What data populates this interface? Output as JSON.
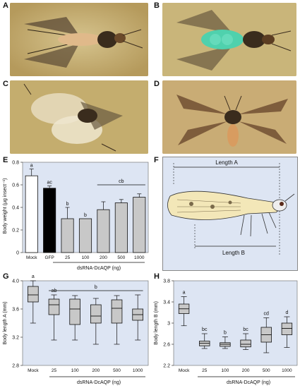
{
  "panel_labels": [
    "A",
    "B",
    "C",
    "D",
    "E",
    "F",
    "G",
    "H"
  ],
  "photo_colors": {
    "A": "#c8b176",
    "B": "#c9b57a",
    "C": "#c4ad6e",
    "D": "#c9ac75",
    "plot_bg": "#dde5f3",
    "bar_fill": "#c8c8c8",
    "bar_black": "#000000",
    "mint": "#4fd1ad"
  },
  "diagram": {
    "length_a": "Length A",
    "length_b": "Length B"
  },
  "chart_data": [
    {
      "panel": "E",
      "type": "bar",
      "ylabel": "Body weight (μg insect⁻¹)",
      "ylim": [
        0,
        0.8
      ],
      "yticks": [
        "0",
        "0.2",
        "0.4",
        "0.6",
        "0.8"
      ],
      "categories": [
        "Mock",
        "GFP",
        "25",
        "100",
        "200",
        "500",
        "1000"
      ],
      "values": [
        0.68,
        0.57,
        0.3,
        0.3,
        0.38,
        0.44,
        0.49
      ],
      "errors": [
        0.06,
        0.02,
        0.1,
        0.0,
        0.07,
        0.03,
        0.03
      ],
      "fills": [
        "white",
        "black",
        "grey",
        "grey",
        "grey",
        "grey",
        "grey"
      ],
      "letters": [
        "a",
        "ac",
        "b",
        "b",
        "",
        "",
        ""
      ],
      "group_letter": "cb",
      "xlabel": "dsRNA-DcAQP (ng)"
    },
    {
      "panel": "G",
      "type": "box",
      "ylabel": "Body length A (mm)",
      "ylim": [
        2.8,
        4.0
      ],
      "yticks": [
        "2.8",
        "3.2",
        "3.6",
        "4.0"
      ],
      "categories": [
        "Mock",
        "25",
        "100",
        "200",
        "500",
        "1000"
      ],
      "boxes": [
        {
          "min": 3.4,
          "q1": 3.7,
          "median": 3.8,
          "q3": 3.92,
          "max": 4.0
        },
        {
          "min": 3.16,
          "q1": 3.52,
          "median": 3.66,
          "q3": 3.74,
          "max": 3.8
        },
        {
          "min": 3.16,
          "q1": 3.38,
          "median": 3.6,
          "q3": 3.74,
          "max": 3.79
        },
        {
          "min": 3.1,
          "q1": 3.4,
          "median": 3.5,
          "q3": 3.66,
          "max": 3.75
        },
        {
          "min": 3.1,
          "q1": 3.4,
          "median": 3.61,
          "q3": 3.73,
          "max": 3.79
        },
        {
          "min": 3.16,
          "q1": 3.44,
          "median": 3.52,
          "q3": 3.6,
          "max": 3.8
        }
      ],
      "letters": [
        "a",
        "ab",
        "",
        "",
        "",
        ""
      ],
      "group_letter": "b",
      "xlabel": "dsRNA-DcAQP (ng)"
    },
    {
      "panel": "H",
      "type": "box",
      "ylabel": "Body length B (mm)",
      "ylim": [
        2.2,
        3.8
      ],
      "yticks": [
        "2.2",
        "2.6",
        "3",
        "3.4",
        "3.8"
      ],
      "categories": [
        "Mock",
        "25",
        "100",
        "200",
        "500",
        "1000"
      ],
      "boxes": [
        {
          "min": 2.95,
          "q1": 3.18,
          "median": 3.27,
          "q3": 3.36,
          "max": 3.5
        },
        {
          "min": 2.52,
          "q1": 2.57,
          "median": 2.62,
          "q3": 2.66,
          "max": 2.8
        },
        {
          "min": 2.52,
          "q1": 2.56,
          "median": 2.6,
          "q3": 2.63,
          "max": 2.74
        },
        {
          "min": 2.5,
          "q1": 2.55,
          "median": 2.6,
          "q3": 2.68,
          "max": 2.8
        },
        {
          "min": 2.44,
          "q1": 2.64,
          "median": 2.78,
          "q3": 2.92,
          "max": 3.1
        },
        {
          "min": 2.54,
          "q1": 2.78,
          "median": 2.9,
          "q3": 3.0,
          "max": 3.12
        }
      ],
      "letters": [
        "a",
        "bc",
        "b",
        "bc",
        "cd",
        "d"
      ],
      "group_letter": "",
      "xlabel": "dsRNA-DcAQP (ng)"
    }
  ]
}
